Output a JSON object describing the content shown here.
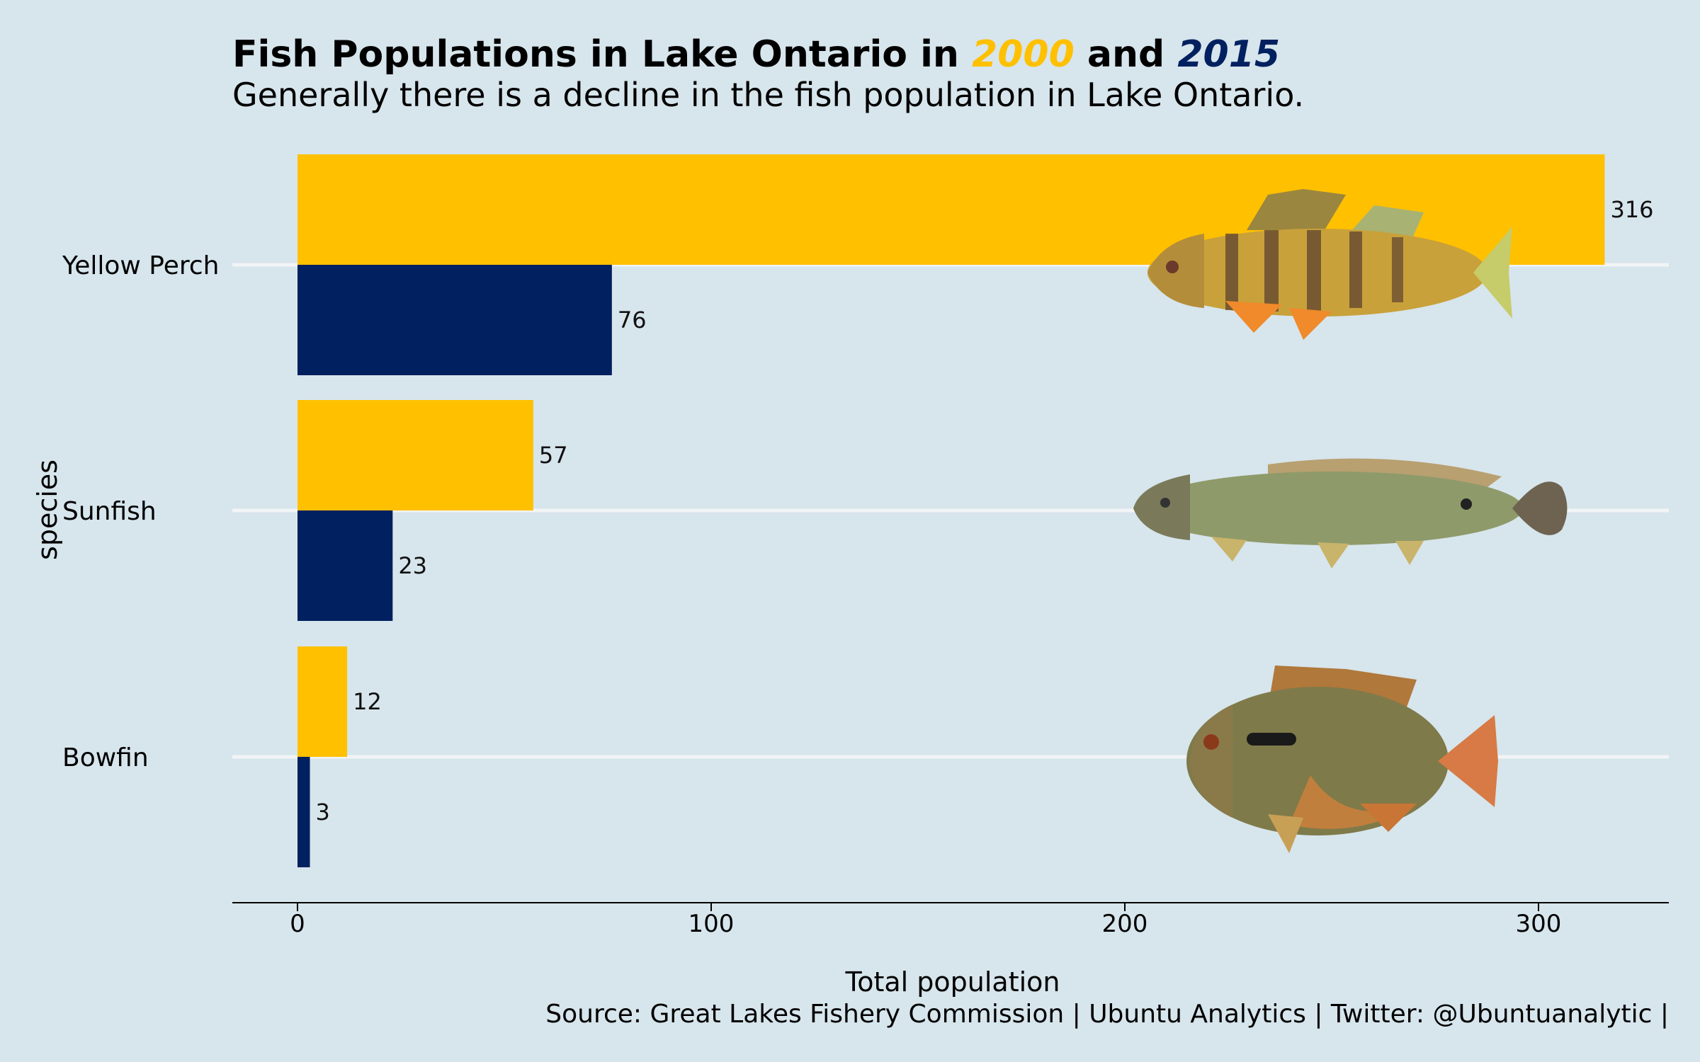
{
  "title": {
    "prefix": "Fish Populations in Lake Ontario in ",
    "year_a": "2000",
    "middle": " and ",
    "year_b": "2015"
  },
  "subtitle": "Generally there is a decline in the fish population in Lake Ontario.",
  "caption": "Source: Great Lakes Fishery Commission | Ubuntu Analytics | Twitter: @Ubuntuanalytic |",
  "colors": {
    "background": "#d7e5ec",
    "series_2000": "#ffc000",
    "series_2015": "#00205f",
    "gridline": "#f2f4f6"
  },
  "icons": [
    "yellow-perch-illustration",
    "bowfin-illustration",
    "sunfish-illustration"
  ],
  "chart_data": {
    "type": "bar",
    "orientation": "horizontal",
    "categories": [
      "Yellow Perch",
      "Sunfish",
      "Bowfin"
    ],
    "series": [
      {
        "name": "2000",
        "values": [
          316,
          57,
          12
        ]
      },
      {
        "name": "2015",
        "values": [
          76,
          23,
          3
        ]
      }
    ],
    "xlabel": "Total population",
    "ylabel": "species",
    "xlim": [
      0,
      330
    ],
    "xticks": [
      0,
      100,
      200,
      300
    ],
    "grid": "horizontal-major"
  }
}
